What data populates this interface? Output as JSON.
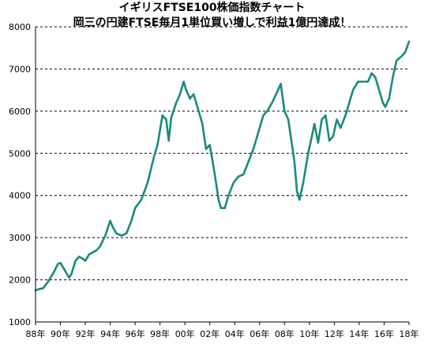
{
  "chart_data": {
    "type": "line",
    "title": "イギリスFTSE100株価指数チャート",
    "subtitle": "岡三の円建FTSE毎月1単位買い増しで利益1億円達成！",
    "xlabel": "",
    "ylabel": "",
    "ylim": [
      1000,
      8000
    ],
    "xlim": [
      1988,
      2018
    ],
    "grid": true,
    "legend": "none",
    "series_color": "#1a8a7a",
    "y_ticks": [
      "1000",
      "2000",
      "3000",
      "4000",
      "5000",
      "6000",
      "7000",
      "8000"
    ],
    "x_ticks": [
      "88年",
      "90年",
      "92年",
      "94年",
      "96年",
      "98年",
      "00年",
      "02年",
      "04年",
      "06年",
      "08年",
      "10年",
      "12年",
      "14年",
      "16年",
      "18年"
    ],
    "series": [
      {
        "x": [
          1988.0,
          1988.3,
          1988.6,
          1989.0,
          1989.5,
          1989.8,
          1990.0,
          1990.3,
          1990.5,
          1990.7,
          1990.9,
          1991.2,
          1991.5,
          1991.8,
          1992.0,
          1992.3,
          1992.6,
          1992.9,
          1993.2,
          1993.6,
          1994.0,
          1994.2,
          1994.5,
          1994.9,
          1995.3,
          1995.7,
          1996.0,
          1996.5,
          1997.0,
          1997.5,
          1997.8,
          1998.2,
          1998.5,
          1998.7,
          1998.9,
          1999.3,
          1999.6,
          1999.9,
          2000.1,
          2000.4,
          2000.7,
          2001.0,
          2001.4,
          2001.7,
          2002.0,
          2002.4,
          2002.7,
          2002.9,
          2003.2,
          2003.5,
          2003.9,
          2004.3,
          2004.7,
          2005.1,
          2005.5,
          2005.9,
          2006.3,
          2006.6,
          2007.0,
          2007.4,
          2007.7,
          2008.0,
          2008.3,
          2008.6,
          2008.8,
          2009.0,
          2009.2,
          2009.5,
          2009.9,
          2010.2,
          2010.4,
          2010.7,
          2011.0,
          2011.3,
          2011.6,
          2011.9,
          2012.2,
          2012.5,
          2012.9,
          2013.2,
          2013.5,
          2013.9,
          2014.3,
          2014.7,
          2015.0,
          2015.3,
          2015.6,
          2015.9,
          2016.1,
          2016.4,
          2016.7,
          2017.0,
          2017.4,
          2017.7,
          2018.0
        ],
        "y": [
          1750,
          1780,
          1800,
          1950,
          2200,
          2380,
          2400,
          2250,
          2150,
          2050,
          2150,
          2450,
          2550,
          2500,
          2450,
          2600,
          2650,
          2700,
          2800,
          3050,
          3400,
          3250,
          3100,
          3050,
          3100,
          3400,
          3700,
          3900,
          4300,
          4900,
          5200,
          5900,
          5800,
          5300,
          5850,
          6200,
          6400,
          6700,
          6500,
          6300,
          6400,
          6100,
          5700,
          5100,
          5200,
          4500,
          3900,
          3700,
          3700,
          4000,
          4300,
          4450,
          4500,
          4800,
          5100,
          5500,
          5900,
          6000,
          6200,
          6450,
          6650,
          6000,
          5800,
          5200,
          4800,
          4100,
          3900,
          4300,
          5000,
          5400,
          5700,
          5250,
          5800,
          5900,
          5300,
          5400,
          5800,
          5600,
          5900,
          6200,
          6500,
          6700,
          6700,
          6700,
          6900,
          6800,
          6500,
          6200,
          6100,
          6300,
          6800,
          7200,
          7300,
          7400,
          7650
        ]
      }
    ]
  }
}
